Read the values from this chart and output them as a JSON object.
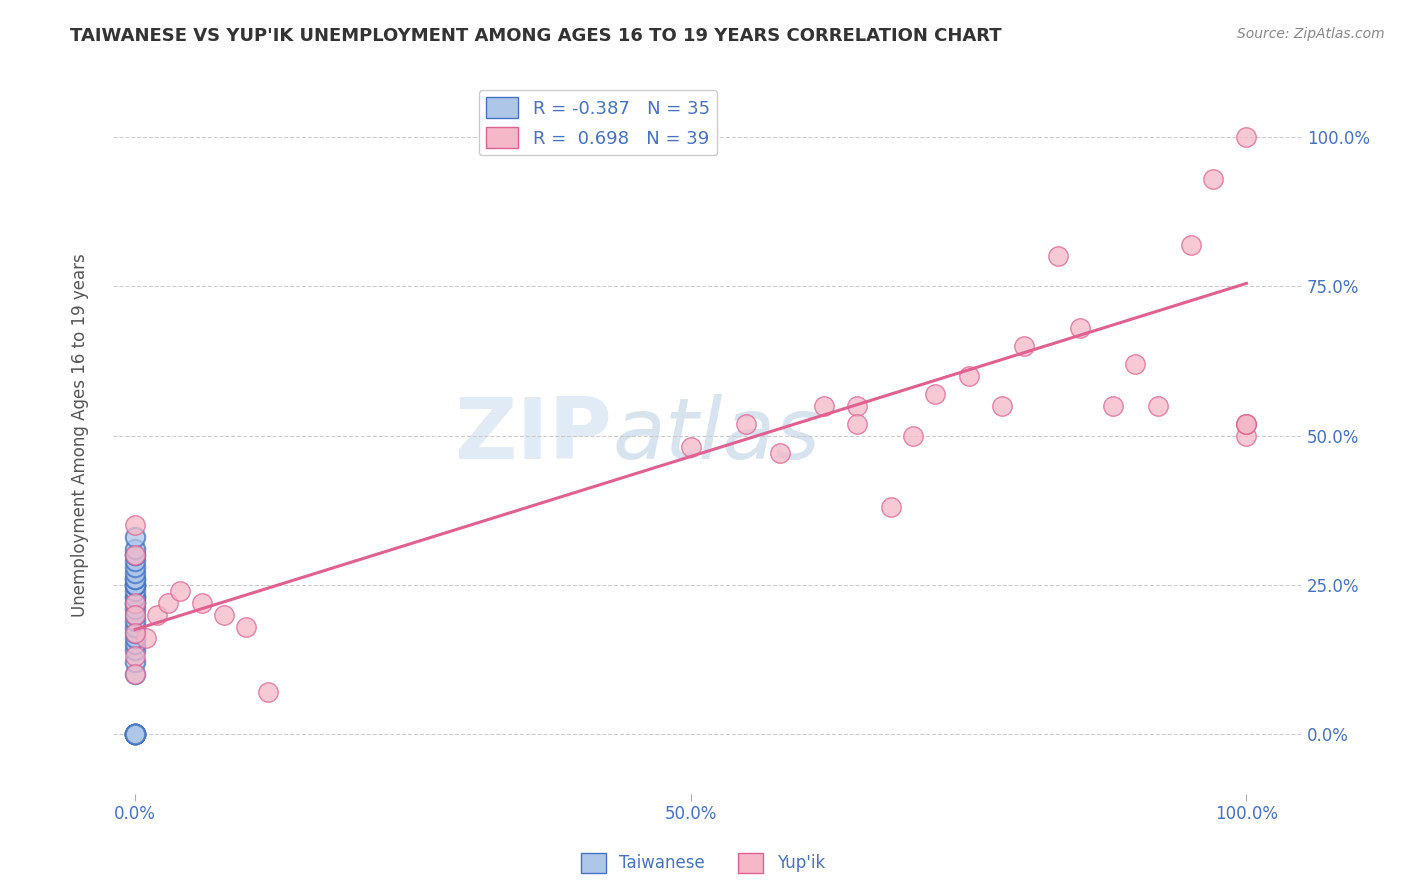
{
  "title": "TAIWANESE VS YUP'IK UNEMPLOYMENT AMONG AGES 16 TO 19 YEARS CORRELATION CHART",
  "source": "Source: ZipAtlas.com",
  "ylabel": "Unemployment Among Ages 16 to 19 years",
  "watermark_zip": "ZIP",
  "watermark_atlas": "atlas",
  "background_color": "#ffffff",
  "plot_bg_color": "#ffffff",
  "grid_color": "#cccccc",
  "title_color": "#333333",
  "axis_label_color": "#4472c4",
  "taiwanese_fill": "#aec6e8",
  "taiwanese_edge": "#4472c4",
  "yupik_fill": "#f4b8c8",
  "yupik_edge": "#e06090",
  "trendline_color": "#e06090",
  "legend_taiwanese_R": "-0.387",
  "legend_taiwanese_N": "35",
  "legend_yupik_R": "0.698",
  "legend_yupik_N": "39",
  "xmin": -0.02,
  "xmax": 1.05,
  "ymin": -0.1,
  "ymax": 1.1,
  "xticks": [
    0.0,
    0.5,
    1.0
  ],
  "xtick_labels": [
    "0.0%",
    "50.0%",
    "100.0%"
  ],
  "yticks": [
    0.0,
    0.25,
    0.5,
    0.75,
    1.0
  ],
  "ytick_labels_right": [
    "0.0%",
    "25.0%",
    "50.0%",
    "75.0%",
    "100.0%"
  ],
  "taiwanese_x": [
    0.0,
    0.0,
    0.0,
    0.0,
    0.0,
    0.0,
    0.0,
    0.0,
    0.0,
    0.0,
    0.0,
    0.0,
    0.0,
    0.0,
    0.0,
    0.0,
    0.0,
    0.0,
    0.0,
    0.0,
    0.0,
    0.0,
    0.0,
    0.0,
    0.0,
    0.0,
    0.0,
    0.0,
    0.0,
    0.0,
    0.0,
    0.0,
    0.0,
    0.0,
    0.0
  ],
  "taiwanese_y": [
    0.0,
    0.0,
    0.0,
    0.0,
    0.0,
    0.0,
    0.0,
    0.1,
    0.12,
    0.14,
    0.15,
    0.16,
    0.17,
    0.18,
    0.19,
    0.2,
    0.21,
    0.22,
    0.22,
    0.23,
    0.23,
    0.24,
    0.25,
    0.25,
    0.25,
    0.26,
    0.26,
    0.27,
    0.28,
    0.29,
    0.3,
    0.3,
    0.31,
    0.33,
    0.0
  ],
  "yupik_x": [
    0.0,
    0.01,
    0.02,
    0.03,
    0.04,
    0.06,
    0.08,
    0.1,
    0.12,
    0.5,
    0.55,
    0.58,
    0.62,
    0.65,
    0.65,
    0.68,
    0.7,
    0.72,
    0.75,
    0.78,
    0.8,
    0.83,
    0.85,
    0.88,
    0.9,
    0.92,
    0.95,
    0.97,
    1.0,
    1.0,
    1.0,
    1.0,
    1.0,
    0.0,
    0.0,
    0.0,
    0.0,
    0.0,
    0.0
  ],
  "yupik_y": [
    0.3,
    0.16,
    0.2,
    0.22,
    0.24,
    0.22,
    0.2,
    0.18,
    0.07,
    0.48,
    0.52,
    0.47,
    0.55,
    0.55,
    0.52,
    0.38,
    0.5,
    0.57,
    0.6,
    0.55,
    0.65,
    0.8,
    0.68,
    0.55,
    0.62,
    0.55,
    0.82,
    0.93,
    0.5,
    0.52,
    0.52,
    0.52,
    1.0,
    0.35,
    0.22,
    0.2,
    0.17,
    0.13,
    0.1
  ],
  "trendline_x_start": 0.0,
  "trendline_x_end": 1.0,
  "trendline_y_start": 0.175,
  "trendline_y_end": 0.755,
  "marker_size": 14
}
